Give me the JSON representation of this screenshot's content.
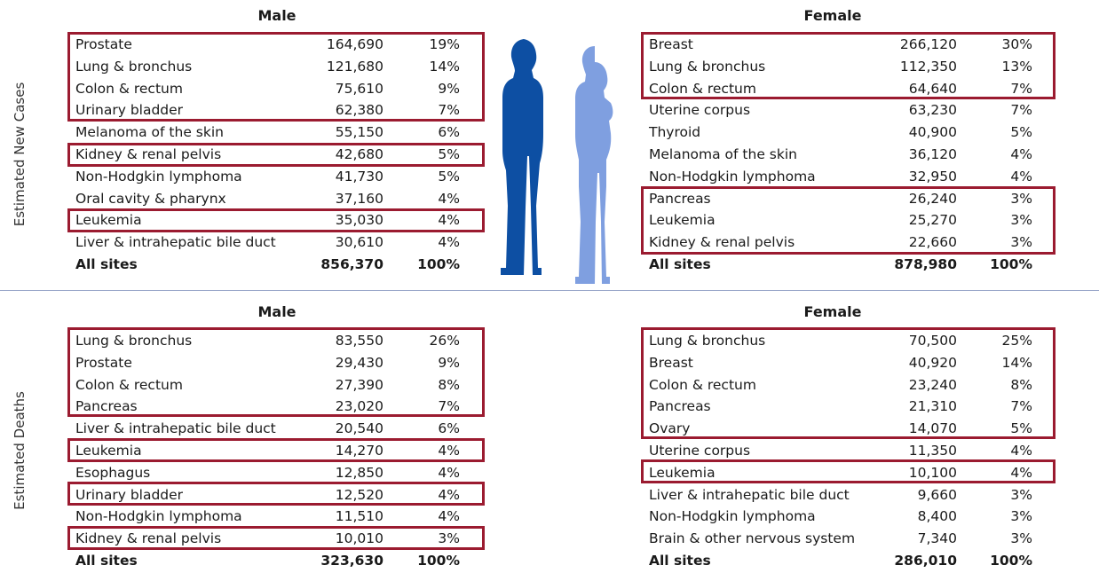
{
  "sections": [
    {
      "label": "Estimated New Cases",
      "panels": [
        {
          "title": "Male",
          "rows": [
            [
              "Prostate",
              "164,690",
              "19%"
            ],
            [
              "Lung & bronchus",
              "121,680",
              "14%"
            ],
            [
              "Colon & rectum",
              "75,610",
              "9%"
            ],
            [
              "Urinary bladder",
              "62,380",
              "7%"
            ],
            [
              "Melanoma of the skin",
              "55,150",
              "6%"
            ],
            [
              "Kidney & renal pelvis",
              "42,680",
              "5%"
            ],
            [
              "Non-Hodgkin lymphoma",
              "41,730",
              "5%"
            ],
            [
              "Oral cavity & pharynx",
              "37,160",
              "4%"
            ],
            [
              "Leukemia",
              "35,030",
              "4%"
            ],
            [
              "Liver & intrahepatic bile duct",
              "30,610",
              "4%"
            ]
          ],
          "total": [
            "All sites",
            "856,370",
            "100%"
          ]
        },
        {
          "title": "Female",
          "rows": [
            [
              "Breast",
              "266,120",
              "30%"
            ],
            [
              "Lung & bronchus",
              "112,350",
              "13%"
            ],
            [
              "Colon & rectum",
              "64,640",
              "7%"
            ],
            [
              "Uterine corpus",
              "63,230",
              "7%"
            ],
            [
              "Thyroid",
              "40,900",
              "5%"
            ],
            [
              "Melanoma of the skin",
              "36,120",
              "4%"
            ],
            [
              "Non-Hodgkin lymphoma",
              "32,950",
              "4%"
            ],
            [
              "Pancreas",
              "26,240",
              "3%"
            ],
            [
              "Leukemia",
              "25,270",
              "3%"
            ],
            [
              "Kidney & renal pelvis",
              "22,660",
              "3%"
            ]
          ],
          "total": [
            "All sites",
            "878,980",
            "100%"
          ]
        }
      ]
    },
    {
      "label": "Estimated Deaths",
      "panels": [
        {
          "title": "Male",
          "rows": [
            [
              "Lung & bronchus",
              "83,550",
              "26%"
            ],
            [
              "Prostate",
              "29,430",
              "9%"
            ],
            [
              "Colon & rectum",
              "27,390",
              "8%"
            ],
            [
              "Pancreas",
              "23,020",
              "7%"
            ],
            [
              "Liver & intrahepatic bile duct",
              "20,540",
              "6%"
            ],
            [
              "Leukemia",
              "14,270",
              "4%"
            ],
            [
              "Esophagus",
              "12,850",
              "4%"
            ],
            [
              "Urinary bladder",
              "12,520",
              "4%"
            ],
            [
              "Non-Hodgkin lymphoma",
              "11,510",
              "4%"
            ],
            [
              "Kidney & renal pelvis",
              "10,010",
              "3%"
            ]
          ],
          "total": [
            "All sites",
            "323,630",
            "100%"
          ]
        },
        {
          "title": "Female",
          "rows": [
            [
              "Lung & bronchus",
              "70,500",
              "25%"
            ],
            [
              "Breast",
              "40,920",
              "14%"
            ],
            [
              "Colon & rectum",
              "23,240",
              "8%"
            ],
            [
              "Pancreas",
              "21,310",
              "7%"
            ],
            [
              "Ovary",
              "14,070",
              "5%"
            ],
            [
              "Uterine corpus",
              "11,350",
              "4%"
            ],
            [
              "Leukemia",
              "10,100",
              "4%"
            ],
            [
              "Liver & intrahepatic bile duct",
              "9,660",
              "3%"
            ],
            [
              "Non-Hodgkin lymphoma",
              "8,400",
              "3%"
            ],
            [
              "Brain & other nervous system",
              "7,340",
              "3%"
            ]
          ],
          "total": [
            "All sites",
            "286,010",
            "100%"
          ]
        }
      ]
    }
  ]
}
